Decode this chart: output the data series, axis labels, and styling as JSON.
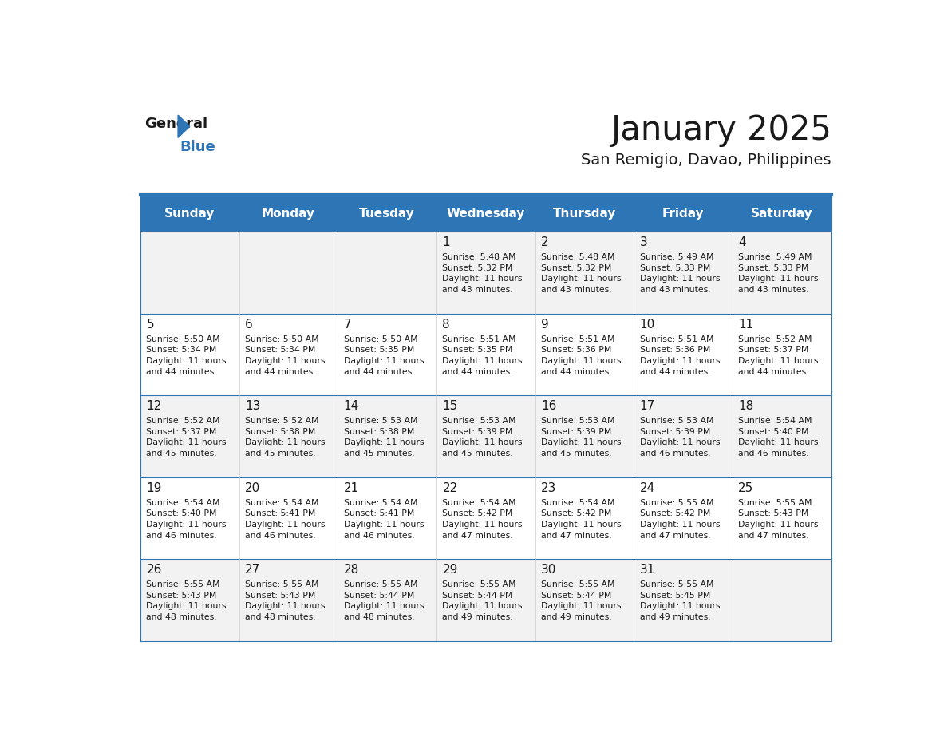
{
  "title": "January 2025",
  "subtitle": "San Remigio, Davao, Philippines",
  "header_bg_color": "#2E75B6",
  "header_text_color": "#FFFFFF",
  "day_names": [
    "Sunday",
    "Monday",
    "Tuesday",
    "Wednesday",
    "Thursday",
    "Friday",
    "Saturday"
  ],
  "row_colors": [
    "#F2F2F2",
    "#FFFFFF"
  ],
  "border_color": "#2E75B6",
  "title_color": "#1a1a1a",
  "subtitle_color": "#1a1a1a",
  "cell_text_color": "#1a1a1a",
  "day_num_color": "#1a1a1a",
  "weeks": [
    [
      {
        "day": "",
        "text": ""
      },
      {
        "day": "",
        "text": ""
      },
      {
        "day": "",
        "text": ""
      },
      {
        "day": "1",
        "text": "Sunrise: 5:48 AM\nSunset: 5:32 PM\nDaylight: 11 hours\nand 43 minutes."
      },
      {
        "day": "2",
        "text": "Sunrise: 5:48 AM\nSunset: 5:32 PM\nDaylight: 11 hours\nand 43 minutes."
      },
      {
        "day": "3",
        "text": "Sunrise: 5:49 AM\nSunset: 5:33 PM\nDaylight: 11 hours\nand 43 minutes."
      },
      {
        "day": "4",
        "text": "Sunrise: 5:49 AM\nSunset: 5:33 PM\nDaylight: 11 hours\nand 43 minutes."
      }
    ],
    [
      {
        "day": "5",
        "text": "Sunrise: 5:50 AM\nSunset: 5:34 PM\nDaylight: 11 hours\nand 44 minutes."
      },
      {
        "day": "6",
        "text": "Sunrise: 5:50 AM\nSunset: 5:34 PM\nDaylight: 11 hours\nand 44 minutes."
      },
      {
        "day": "7",
        "text": "Sunrise: 5:50 AM\nSunset: 5:35 PM\nDaylight: 11 hours\nand 44 minutes."
      },
      {
        "day": "8",
        "text": "Sunrise: 5:51 AM\nSunset: 5:35 PM\nDaylight: 11 hours\nand 44 minutes."
      },
      {
        "day": "9",
        "text": "Sunrise: 5:51 AM\nSunset: 5:36 PM\nDaylight: 11 hours\nand 44 minutes."
      },
      {
        "day": "10",
        "text": "Sunrise: 5:51 AM\nSunset: 5:36 PM\nDaylight: 11 hours\nand 44 minutes."
      },
      {
        "day": "11",
        "text": "Sunrise: 5:52 AM\nSunset: 5:37 PM\nDaylight: 11 hours\nand 44 minutes."
      }
    ],
    [
      {
        "day": "12",
        "text": "Sunrise: 5:52 AM\nSunset: 5:37 PM\nDaylight: 11 hours\nand 45 minutes."
      },
      {
        "day": "13",
        "text": "Sunrise: 5:52 AM\nSunset: 5:38 PM\nDaylight: 11 hours\nand 45 minutes."
      },
      {
        "day": "14",
        "text": "Sunrise: 5:53 AM\nSunset: 5:38 PM\nDaylight: 11 hours\nand 45 minutes."
      },
      {
        "day": "15",
        "text": "Sunrise: 5:53 AM\nSunset: 5:39 PM\nDaylight: 11 hours\nand 45 minutes."
      },
      {
        "day": "16",
        "text": "Sunrise: 5:53 AM\nSunset: 5:39 PM\nDaylight: 11 hours\nand 45 minutes."
      },
      {
        "day": "17",
        "text": "Sunrise: 5:53 AM\nSunset: 5:39 PM\nDaylight: 11 hours\nand 46 minutes."
      },
      {
        "day": "18",
        "text": "Sunrise: 5:54 AM\nSunset: 5:40 PM\nDaylight: 11 hours\nand 46 minutes."
      }
    ],
    [
      {
        "day": "19",
        "text": "Sunrise: 5:54 AM\nSunset: 5:40 PM\nDaylight: 11 hours\nand 46 minutes."
      },
      {
        "day": "20",
        "text": "Sunrise: 5:54 AM\nSunset: 5:41 PM\nDaylight: 11 hours\nand 46 minutes."
      },
      {
        "day": "21",
        "text": "Sunrise: 5:54 AM\nSunset: 5:41 PM\nDaylight: 11 hours\nand 46 minutes."
      },
      {
        "day": "22",
        "text": "Sunrise: 5:54 AM\nSunset: 5:42 PM\nDaylight: 11 hours\nand 47 minutes."
      },
      {
        "day": "23",
        "text": "Sunrise: 5:54 AM\nSunset: 5:42 PM\nDaylight: 11 hours\nand 47 minutes."
      },
      {
        "day": "24",
        "text": "Sunrise: 5:55 AM\nSunset: 5:42 PM\nDaylight: 11 hours\nand 47 minutes."
      },
      {
        "day": "25",
        "text": "Sunrise: 5:55 AM\nSunset: 5:43 PM\nDaylight: 11 hours\nand 47 minutes."
      }
    ],
    [
      {
        "day": "26",
        "text": "Sunrise: 5:55 AM\nSunset: 5:43 PM\nDaylight: 11 hours\nand 48 minutes."
      },
      {
        "day": "27",
        "text": "Sunrise: 5:55 AM\nSunset: 5:43 PM\nDaylight: 11 hours\nand 48 minutes."
      },
      {
        "day": "28",
        "text": "Sunrise: 5:55 AM\nSunset: 5:44 PM\nDaylight: 11 hours\nand 48 minutes."
      },
      {
        "day": "29",
        "text": "Sunrise: 5:55 AM\nSunset: 5:44 PM\nDaylight: 11 hours\nand 49 minutes."
      },
      {
        "day": "30",
        "text": "Sunrise: 5:55 AM\nSunset: 5:44 PM\nDaylight: 11 hours\nand 49 minutes."
      },
      {
        "day": "31",
        "text": "Sunrise: 5:55 AM\nSunset: 5:45 PM\nDaylight: 11 hours\nand 49 minutes."
      },
      {
        "day": "",
        "text": ""
      }
    ]
  ]
}
